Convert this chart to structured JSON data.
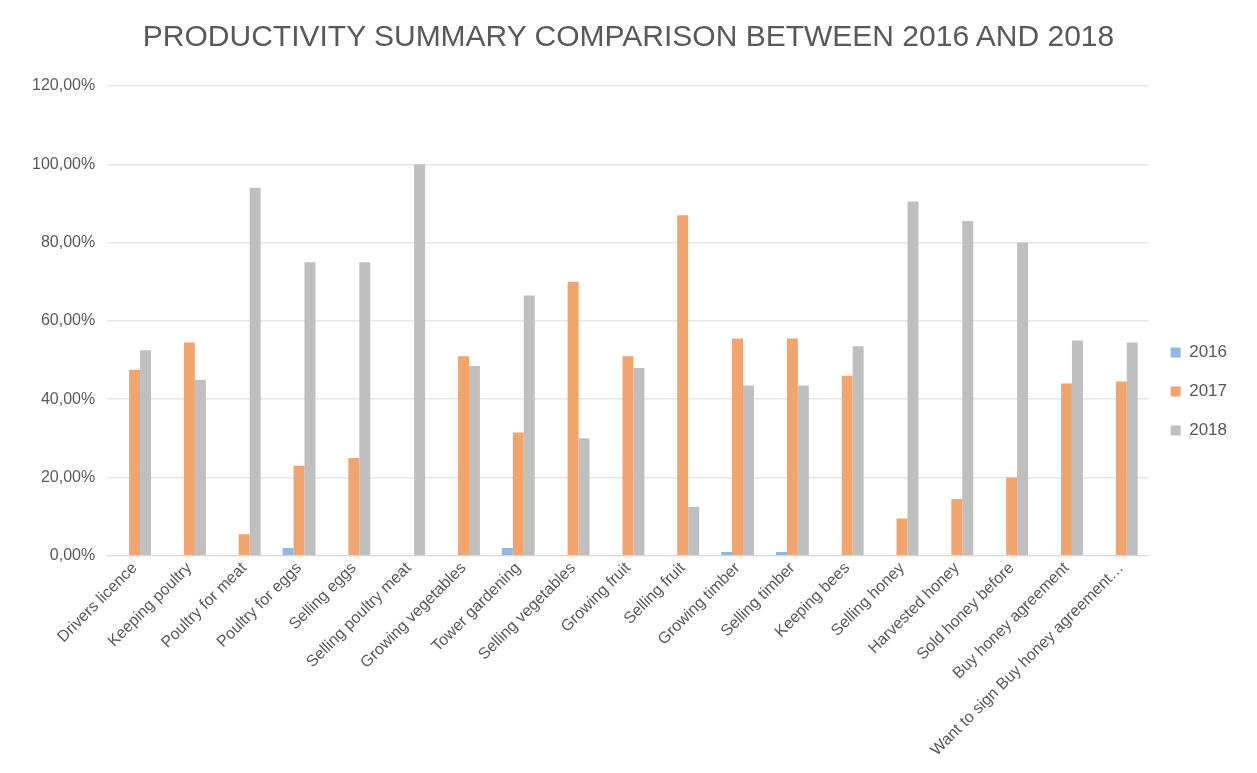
{
  "chart_data": {
    "type": "bar",
    "title": "PRODUCTIVITY SUMMARY COMPARISON BETWEEN 2016 AND 2018",
    "categories": [
      "Drivers licence",
      "Keeping poultry",
      "Poultry for meat",
      "Poultry for eggs",
      "Selling eggs",
      "Selling poultry meat",
      "Growing vegetables",
      "Tower gardening",
      "Selling vegetables",
      "Growing fruit",
      "Selling fruit",
      "Growing timber",
      "Selling timber",
      "Keeping bees",
      "Selling honey",
      "Harvested honey",
      "Sold honey before",
      "Buy honey agreement",
      "Want to sign Buy honey agreement…"
    ],
    "series": [
      {
        "name": "2016",
        "color": "#8fb8e3",
        "values": [
          0,
          0,
          0,
          2,
          0,
          0,
          0,
          2,
          0,
          0,
          0,
          1,
          1,
          0,
          0,
          0,
          0,
          0,
          0
        ]
      },
      {
        "name": "2017",
        "color": "#f0a46e",
        "values": [
          47.5,
          54.5,
          5.5,
          23,
          25,
          0,
          51,
          31.5,
          70,
          51,
          87,
          55.5,
          55.5,
          46,
          9.5,
          14.5,
          20,
          44,
          44.5
        ]
      },
      {
        "name": "2018",
        "color": "#bfbfbf",
        "values": [
          52.5,
          45,
          94,
          75,
          75,
          100,
          48.5,
          66.5,
          30,
          48,
          12.5,
          43.5,
          43.5,
          53.5,
          90.5,
          85.5,
          80,
          55,
          54.5
        ]
      }
    ],
    "ylim": [
      0,
      120
    ],
    "yticks": [
      {
        "value": 0,
        "label": "0,00%"
      },
      {
        "value": 20,
        "label": "20,00%"
      },
      {
        "value": 40,
        "label": "40,00%"
      },
      {
        "value": 60,
        "label": "60,00%"
      },
      {
        "value": 80,
        "label": "80,00%"
      },
      {
        "value": 100,
        "label": "100,00%"
      },
      {
        "value": 120,
        "label": "120,00%"
      }
    ],
    "grid": "y",
    "legend": "right"
  }
}
